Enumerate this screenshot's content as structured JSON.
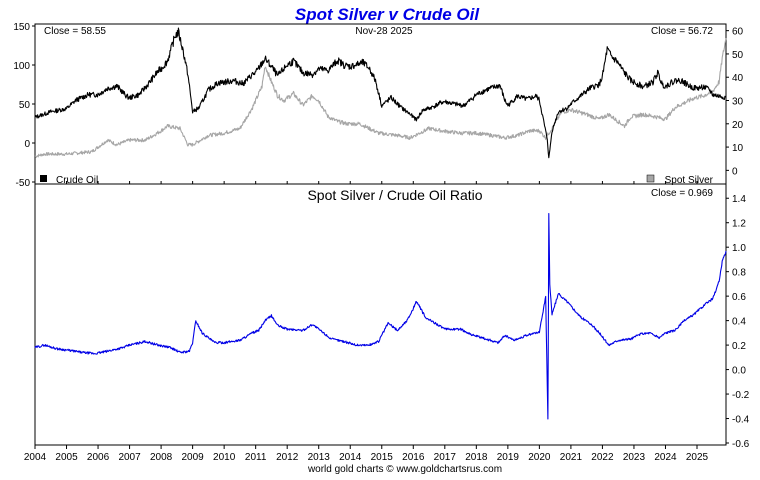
{
  "chart_data": [
    {
      "type": "line",
      "panel": "top",
      "title": "Spot Silver v Crude Oil",
      "date_label": "Nov-28  2025",
      "left_close_label": "Close = 58.55",
      "right_close_label": "Close = 56.72",
      "x_range": [
        2004.0,
        2025.92
      ],
      "left_axis": {
        "range": [
          -50,
          150
        ],
        "ticks": [
          "150",
          "100",
          "50",
          "0",
          "-50"
        ],
        "tick_values": [
          150,
          100,
          50,
          0,
          -50
        ]
      },
      "right_axis": {
        "range": [
          -5,
          62
        ],
        "ticks": [
          "60",
          "50",
          "40",
          "30",
          "20",
          "10",
          "0"
        ],
        "tick_values": [
          60,
          50,
          40,
          30,
          20,
          10,
          0
        ]
      },
      "legend": {
        "left": "Crude Oil",
        "right": "Spot Silver"
      },
      "colors": {
        "crude_oil": "#000000",
        "spot_silver": "#a6a6a6",
        "frame": "#000000",
        "background": "#ffffff"
      },
      "series": [
        {
          "name": "Crude Oil",
          "axis": "left",
          "x": [
            2004.0,
            2004.5,
            2005.0,
            2005.3,
            2005.7,
            2006.0,
            2006.3,
            2006.6,
            2006.9,
            2007.0,
            2007.3,
            2007.6,
            2007.9,
            2008.0,
            2008.2,
            2008.45,
            2008.55,
            2008.7,
            2008.85,
            2009.0,
            2009.2,
            2009.5,
            2009.8,
            2010.0,
            2010.3,
            2010.6,
            2010.9,
            2011.0,
            2011.3,
            2011.5,
            2011.7,
            2012.0,
            2012.2,
            2012.5,
            2012.8,
            2013.0,
            2013.3,
            2013.6,
            2013.8,
            2014.0,
            2014.4,
            2014.6,
            2014.8,
            2015.0,
            2015.3,
            2015.6,
            2015.9,
            2016.0,
            2016.1,
            2016.3,
            2016.6,
            2016.9,
            2017.0,
            2017.3,
            2017.6,
            2017.9,
            2018.0,
            2018.3,
            2018.75,
            2018.9,
            2019.0,
            2019.3,
            2019.6,
            2019.9,
            2020.0,
            2020.15,
            2020.25,
            2020.3,
            2020.4,
            2020.6,
            2020.9,
            2021.0,
            2021.3,
            2021.6,
            2021.9,
            2022.0,
            2022.15,
            2022.3,
            2022.45,
            2022.7,
            2022.9,
            2023.0,
            2023.3,
            2023.6,
            2023.75,
            2023.9,
            2024.0,
            2024.3,
            2024.5,
            2024.8,
            2025.0,
            2025.2,
            2025.4,
            2025.5,
            2025.7,
            2025.92
          ],
          "y": [
            33,
            40,
            44,
            55,
            62,
            62,
            70,
            73,
            60,
            58,
            62,
            76,
            92,
            95,
            105,
            138,
            142,
            118,
            88,
            40,
            45,
            68,
            77,
            78,
            80,
            76,
            88,
            90,
            108,
            98,
            86,
            100,
            105,
            90,
            88,
            95,
            93,
            106,
            100,
            98,
            103,
            96,
            80,
            48,
            58,
            46,
            37,
            33,
            30,
            42,
            46,
            52,
            53,
            50,
            48,
            58,
            62,
            68,
            74,
            55,
            48,
            60,
            56,
            60,
            55,
            25,
            5,
            -20,
            15,
            40,
            45,
            50,
            60,
            70,
            75,
            85,
            120,
            110,
            105,
            90,
            80,
            78,
            72,
            78,
            90,
            75,
            73,
            80,
            80,
            72,
            70,
            72,
            68,
            62,
            60,
            58.55
          ]
        },
        {
          "name": "Spot Silver",
          "axis": "right",
          "x": [
            2004.0,
            2004.3,
            2005.0,
            2005.8,
            2006.0,
            2006.3,
            2006.6,
            2007.0,
            2007.5,
            2008.0,
            2008.2,
            2008.6,
            2008.85,
            2009.0,
            2009.5,
            2010.0,
            2010.5,
            2010.9,
            2011.0,
            2011.2,
            2011.3,
            2011.5,
            2011.7,
            2011.9,
            2012.2,
            2012.5,
            2012.8,
            2013.0,
            2013.3,
            2013.6,
            2013.9,
            2014.3,
            2014.9,
            2015.5,
            2015.9,
            2016.5,
            2016.9,
            2017.5,
            2018.0,
            2018.5,
            2018.9,
            2019.3,
            2019.7,
            2020.0,
            2020.2,
            2020.4,
            2020.7,
            2021.0,
            2021.5,
            2021.9,
            2022.2,
            2022.7,
            2022.9,
            2023.3,
            2023.7,
            2024.0,
            2024.3,
            2024.6,
            2024.9,
            2025.2,
            2025.5,
            2025.7,
            2025.8,
            2025.92
          ],
          "y": [
            6,
            7,
            7,
            8,
            10,
            13,
            11,
            13,
            13,
            17,
            19,
            18,
            11,
            11,
            15,
            16,
            18,
            27,
            30,
            36,
            45,
            38,
            32,
            30,
            33,
            28,
            32,
            30,
            23,
            21,
            20,
            20,
            16,
            15,
            14,
            18,
            17,
            16,
            16,
            15,
            14,
            15,
            17,
            17,
            14,
            18,
            25,
            26,
            24,
            22,
            24,
            19,
            23,
            24,
            23,
            22,
            27,
            29,
            31,
            32,
            34,
            38,
            48,
            56.72
          ]
        }
      ]
    },
    {
      "type": "line",
      "panel": "bottom",
      "title": "Spot Silver  /  Crude Oil Ratio",
      "close_label": "Close = 0.969",
      "x_range": [
        2004.0,
        2025.92
      ],
      "y_axis": {
        "range": [
          -0.6,
          1.5
        ],
        "ticks": [
          "1.4",
          "1.2",
          "1.0",
          "0.8",
          "0.6",
          "0.4",
          "0.2",
          "0.0",
          "-0.2",
          "-0.4",
          "-0.6"
        ],
        "tick_values": [
          1.4,
          1.2,
          1.0,
          0.8,
          0.6,
          0.4,
          0.2,
          0.0,
          -0.2,
          -0.4,
          -0.6
        ]
      },
      "x_axis": {
        "ticks": [
          "2004",
          "2005",
          "2006",
          "2007",
          "2008",
          "2009",
          "2010",
          "2011",
          "2012",
          "2013",
          "2014",
          "2015",
          "2016",
          "2017",
          "2018",
          "2019",
          "2020",
          "2021",
          "2022",
          "2023",
          "2024",
          "2025"
        ],
        "tick_values": [
          2004,
          2005,
          2006,
          2007,
          2008,
          2009,
          2010,
          2011,
          2012,
          2013,
          2014,
          2015,
          2016,
          2017,
          2018,
          2019,
          2020,
          2021,
          2022,
          2023,
          2024,
          2025
        ]
      },
      "colors": {
        "ratio": "#0000e6"
      },
      "series": [
        {
          "name": "Spot Silver / Crude Oil Ratio",
          "x": [
            2004.0,
            2004.3,
            2004.7,
            2005.0,
            2005.5,
            2005.9,
            2006.3,
            2006.8,
            2007.0,
            2007.5,
            2007.9,
            2008.3,
            2008.6,
            2008.9,
            2009.0,
            2009.1,
            2009.3,
            2009.7,
            2010.0,
            2010.5,
            2010.9,
            2011.1,
            2011.3,
            2011.5,
            2011.7,
            2012.0,
            2012.5,
            2012.8,
            2013.0,
            2013.4,
            2013.8,
            2014.2,
            2014.6,
            2014.9,
            2015.2,
            2015.5,
            2015.8,
            2016.0,
            2016.1,
            2016.4,
            2016.7,
            2017.0,
            2017.5,
            2017.9,
            2018.3,
            2018.7,
            2018.9,
            2019.2,
            2019.6,
            2019.9,
            2020.0,
            2020.1,
            2020.2,
            2020.27,
            2020.3,
            2020.33,
            2020.4,
            2020.6,
            2020.9,
            2021.0,
            2021.3,
            2021.6,
            2021.9,
            2022.2,
            2022.5,
            2022.9,
            2023.2,
            2023.5,
            2023.8,
            2024.0,
            2024.3,
            2024.6,
            2024.9,
            2025.2,
            2025.5,
            2025.7,
            2025.8,
            2025.92
          ],
          "y": [
            0.18,
            0.2,
            0.17,
            0.16,
            0.14,
            0.13,
            0.15,
            0.18,
            0.2,
            0.23,
            0.2,
            0.18,
            0.14,
            0.15,
            0.22,
            0.4,
            0.3,
            0.22,
            0.22,
            0.24,
            0.3,
            0.32,
            0.4,
            0.44,
            0.36,
            0.33,
            0.32,
            0.37,
            0.33,
            0.25,
            0.23,
            0.2,
            0.2,
            0.23,
            0.38,
            0.32,
            0.4,
            0.5,
            0.56,
            0.42,
            0.38,
            0.33,
            0.33,
            0.28,
            0.25,
            0.22,
            0.28,
            0.24,
            0.28,
            0.3,
            0.31,
            0.45,
            0.6,
            -0.4,
            1.28,
            0.7,
            0.45,
            0.62,
            0.55,
            0.52,
            0.43,
            0.38,
            0.3,
            0.2,
            0.24,
            0.25,
            0.29,
            0.3,
            0.26,
            0.3,
            0.32,
            0.4,
            0.45,
            0.52,
            0.58,
            0.72,
            0.88,
            0.969
          ]
        }
      ]
    }
  ],
  "footer": {
    "credit": "world gold charts © www.goldchartsrus.com"
  }
}
